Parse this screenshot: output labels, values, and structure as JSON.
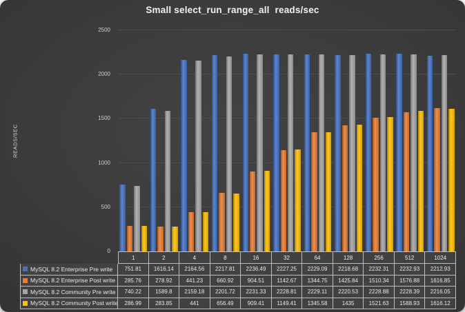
{
  "chart_data": {
    "type": "bar",
    "title": "Small select_run_range_all  reads/sec",
    "ylabel": "READS/SEC",
    "xlabel": "",
    "ylim": [
      0,
      2500
    ],
    "yticks": [
      0,
      500,
      1000,
      1500,
      2000,
      2500
    ],
    "grid": true,
    "legend_position": "data-table-left",
    "categories": [
      "1",
      "2",
      "4",
      "8",
      "16",
      "32",
      "64",
      "128",
      "256",
      "512",
      "1024"
    ],
    "series": [
      {
        "name": "MySQL 8.2 Enterprise Pre write",
        "color": "#4472C4",
        "values": [
          751.81,
          1616.14,
          2164.56,
          2217.81,
          2236.49,
          2227.25,
          2229.09,
          2218.68,
          2232.31,
          2232.93,
          2212.93
        ]
      },
      {
        "name": "MySQL 8.2 Enterprise Post write",
        "color": "#ED7D31",
        "values": [
          285.76,
          278.92,
          441.23,
          660.92,
          904.51,
          1142.67,
          1344.75,
          1425.84,
          1510.34,
          1576.88,
          1616.85
        ]
      },
      {
        "name": "MySQL 8.2 Community Pre write",
        "color": "#A5A5A5",
        "values": [
          740.22,
          1589.8,
          2159.18,
          2201.72,
          2231.33,
          2228.81,
          2229.11,
          2220.53,
          2228.88,
          2228.39,
          2216.05
        ]
      },
      {
        "name": "MySQL 8.2 Community Post write",
        "color": "#FFC000",
        "values": [
          286.99,
          283.85,
          441,
          656.49,
          909.41,
          1149.41,
          1345.58,
          1435,
          1521.63,
          1588.93,
          1616.12
        ]
      }
    ]
  },
  "colors": {
    "card_gradient_center": "#434343",
    "card_gradient_edge": "#272727",
    "gridline": "#4e4e4e",
    "table_border": "#bdbdbd",
    "table_cell_background": "#414141",
    "text_primary": "#f2f2f2",
    "text_secondary": "#cfcfcf"
  }
}
